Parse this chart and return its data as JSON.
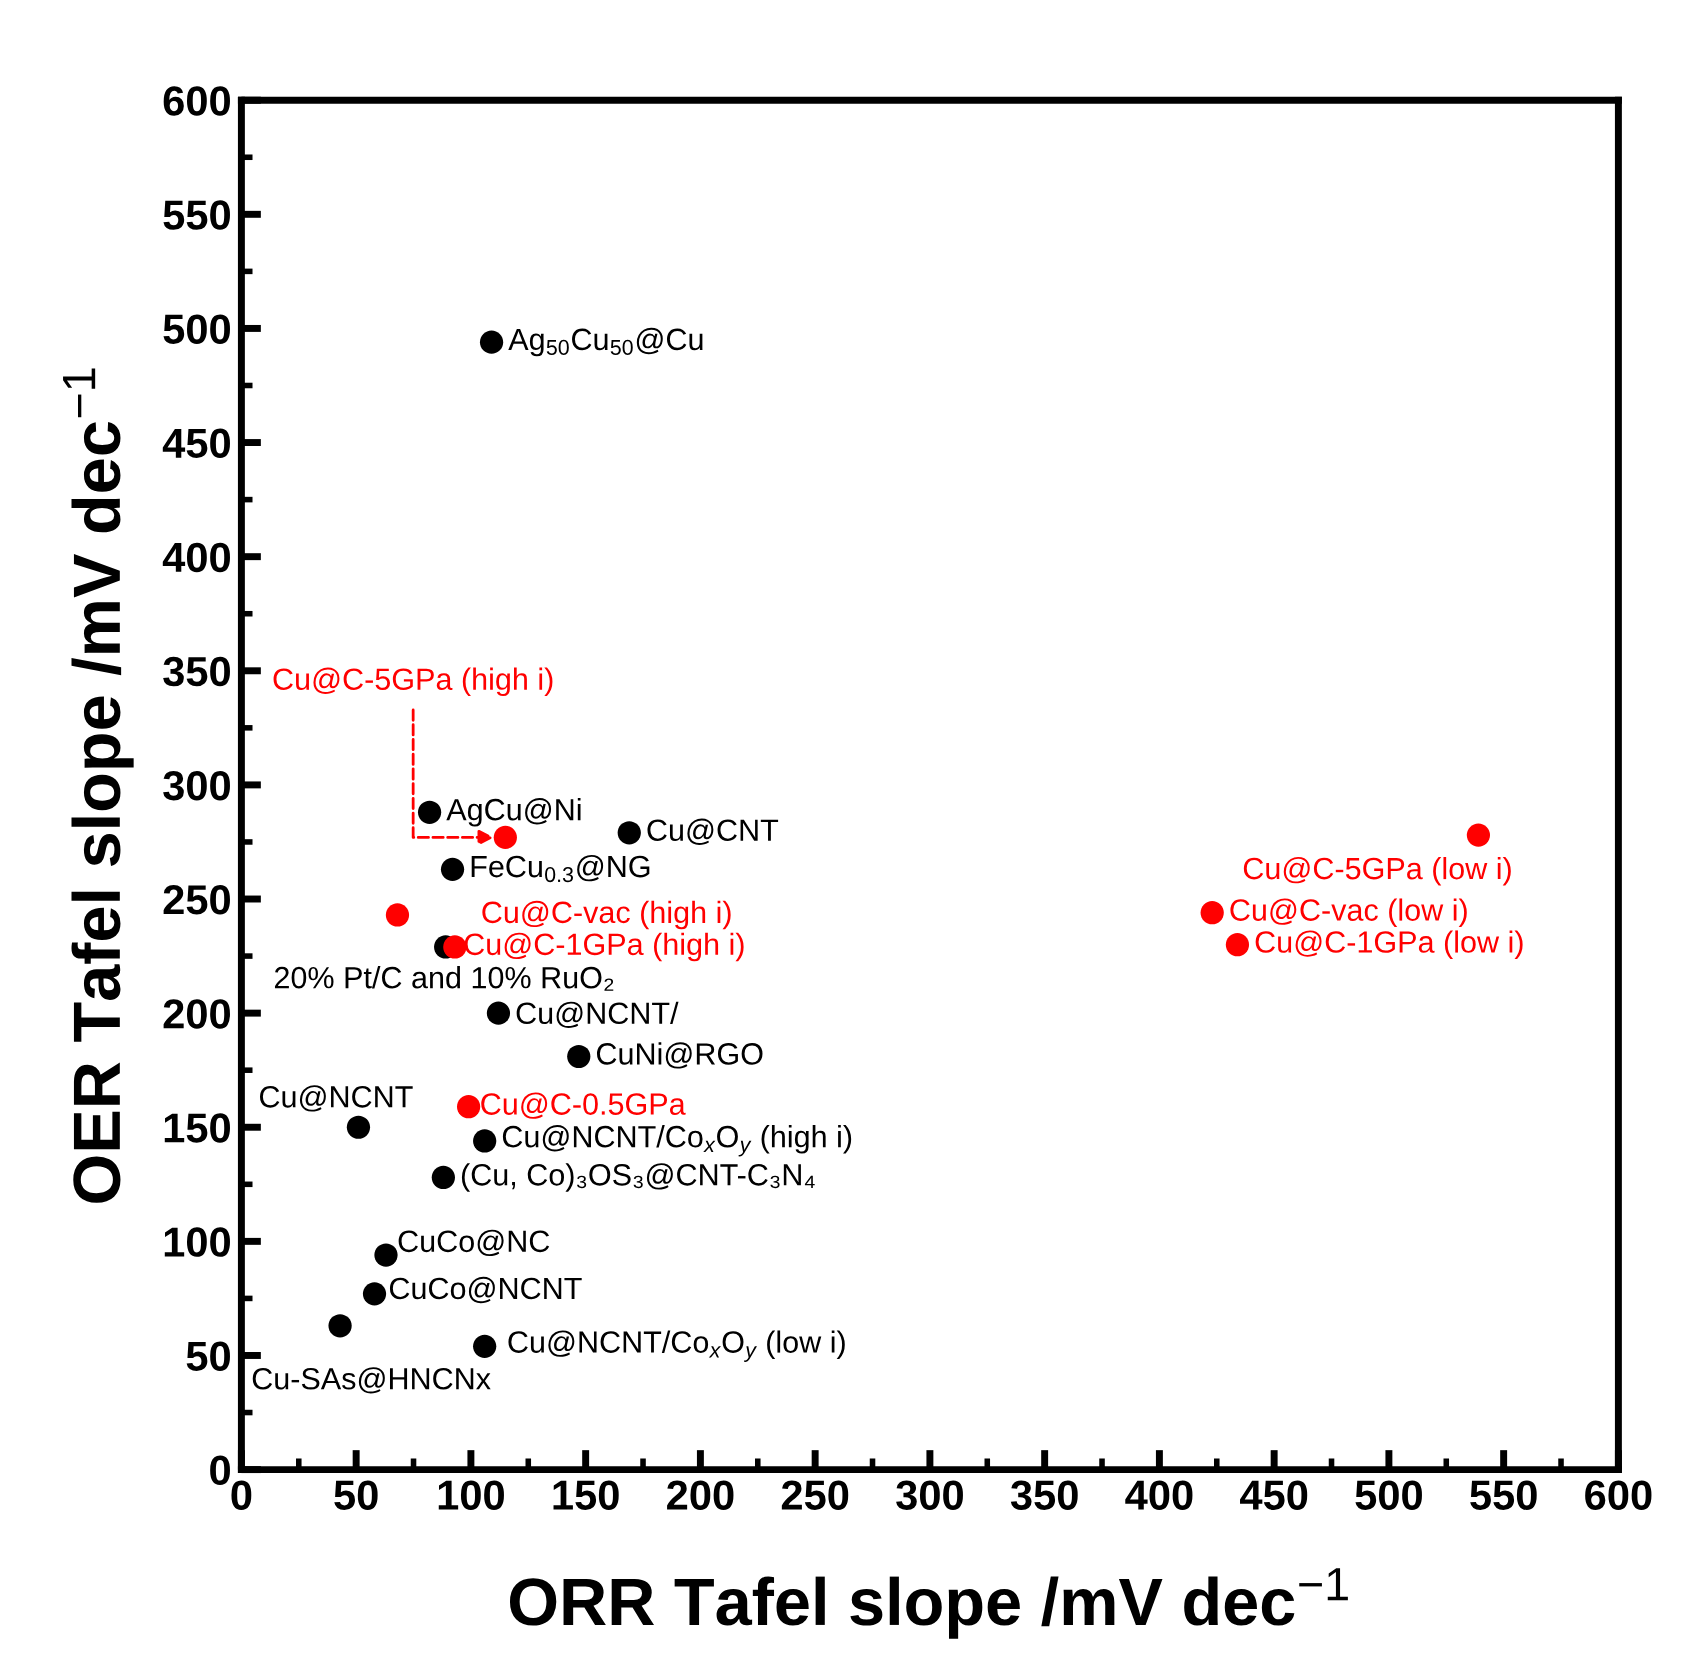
{
  "chart_data": {
    "type": "scatter",
    "xlabel": "ORR Tafel slope /mV dec$^{−1}$",
    "ylabel": "OER Tafel slope /mV dec$^{−1}$",
    "xlim": [
      0,
      600
    ],
    "ylim": [
      0,
      600
    ],
    "xticks": [
      0,
      {
        "value": 25,
        "label": null
      },
      50,
      {
        "value": 75,
        "label": null
      },
      100,
      {
        "value": 125,
        "label": null
      },
      150,
      {
        "value": 175,
        "label": null
      },
      200,
      {
        "value": 225,
        "label": null
      },
      250,
      {
        "value": 275,
        "label": null
      },
      300,
      {
        "value": 325,
        "label": null
      },
      350,
      {
        "value": 375,
        "label": null
      },
      400,
      {
        "value": 425,
        "label": null
      },
      450,
      {
        "value": 475,
        "label": null
      },
      500,
      {
        "value": 525,
        "label": null
      },
      550,
      {
        "value": 575,
        "label": null
      },
      600
    ],
    "yticks": [
      0,
      {
        "value": 25,
        "label": null
      },
      50,
      {
        "value": 75,
        "label": null
      },
      100,
      {
        "value": 125,
        "label": null
      },
      150,
      {
        "value": 175,
        "label": null
      },
      200,
      {
        "value": 225,
        "label": null
      },
      250,
      {
        "value": 275,
        "label": null
      },
      300,
      {
        "value": 325,
        "label": null
      },
      350,
      {
        "value": 375,
        "label": null
      },
      400,
      {
        "value": 425,
        "label": null
      },
      450,
      {
        "value": 475,
        "label": null
      },
      500,
      {
        "value": 525,
        "label": null
      },
      550,
      {
        "value": 575,
        "label": null
      },
      600
    ],
    "grid": false,
    "legend": false,
    "marker": "circle",
    "series": [
      {
        "color": "#000000",
        "x": [
          109,
          82,
          169,
          92,
          89,
          112,
          147,
          51,
          106,
          88,
          63,
          58,
          43,
          106
        ],
        "values": [
          494,
          288,
          279,
          263,
          229,
          200,
          181,
          150,
          144,
          128,
          94,
          77,
          63,
          54
        ]
      },
      {
        "color": "#ff0000",
        "x": [
          115,
          68,
          93,
          99,
          539,
          423,
          434
        ],
        "values": [
          277,
          243,
          229,
          159,
          278,
          244,
          230
        ]
      }
    ],
    "annotations": [
      {
        "text": "Ag$_{50}$Cu$_{50}$@Cu",
        "x": 109,
        "y": 494
      },
      {
        "text": "AgCu@Ni",
        "x": 82,
        "y": 288
      },
      {
        "text": "Cu@CNT",
        "x": 169,
        "y": 279
      },
      {
        "text": "FeCu$_{0.3}$@NG",
        "x": 92,
        "y": 263
      },
      {
        "text": "20% Pt/C and 10% RuO₂",
        "x": 89,
        "y": 229
      },
      {
        "text": "Cu@NCNT/",
        "x": 112,
        "y": 200
      },
      {
        "text": "CuNi@RGO",
        "x": 147,
        "y": 181
      },
      {
        "text": "Cu@NCNT",
        "x": 51,
        "y": 150
      },
      {
        "text": "Cu@NCNT/Co$_{x}$O$_{y}$ (high i)",
        "x": 106,
        "y": 144
      },
      {
        "text": "(Cu, Co)₃OS₃@CNT-C₃N₄",
        "x": 88,
        "y": 128
      },
      {
        "text": "CuCo@NC",
        "x": 63,
        "y": 94
      },
      {
        "text": "CuCo@NCNT",
        "x": 58,
        "y": 77
      },
      {
        "text": "Cu-SAs@HNCNx",
        "x": 43,
        "y": 63
      },
      {
        "text": "Cu@NCNT/Co$_{x}$O$_{y}$ (low i)",
        "x": 106,
        "y": 54
      },
      {
        "text": "Cu@C-5GPa (high i)",
        "x": 115,
        "y": 277
      },
      {
        "text": "Cu@C-vac (high i)",
        "x": 68,
        "y": 243
      },
      {
        "text": "Cu@C-1GPa (high i)",
        "x": 93,
        "y": 229
      },
      {
        "text": "Cu@C-0.5GPa",
        "x": 99,
        "y": 159
      },
      {
        "text": "Cu@C-5GPa (low i)",
        "x": 539,
        "y": 278
      },
      {
        "text": "Cu@C-vac (low i)",
        "x": 423,
        "y": 244
      },
      {
        "text": "Cu@C-1GPa (low i)",
        "x": 434,
        "y": 230
      }
    ]
  }
}
